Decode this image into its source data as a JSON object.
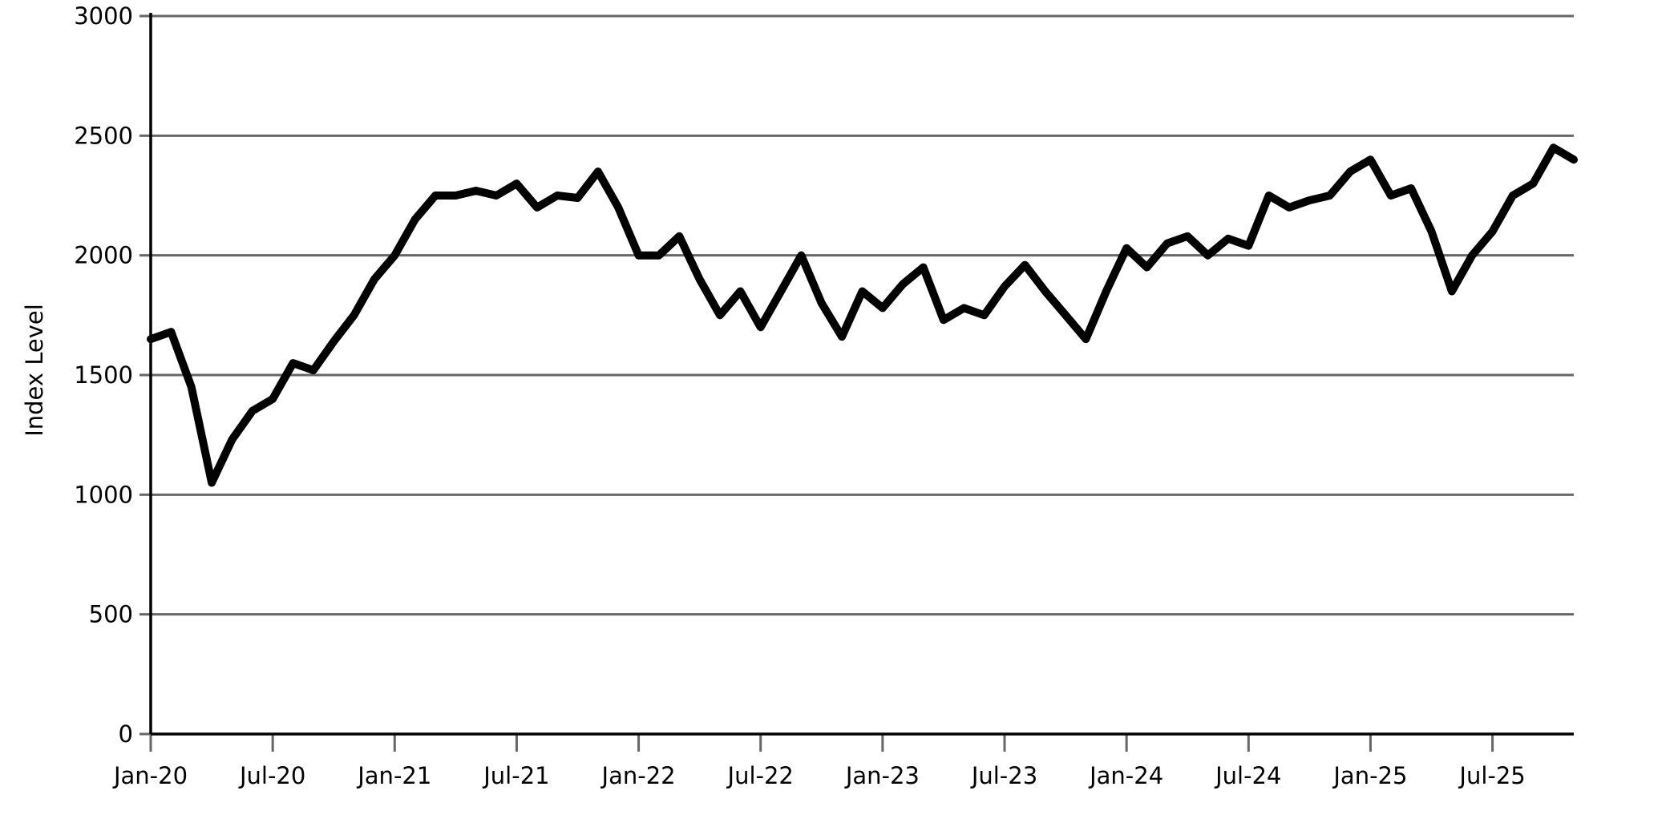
{
  "chart_data": {
    "type": "line",
    "y_label": "Index Level",
    "x": [
      "2020-01",
      "2020-02",
      "2020-03",
      "2020-04",
      "2020-05",
      "2020-06",
      "2020-07",
      "2020-08",
      "2020-09",
      "2020-10",
      "2020-11",
      "2020-12",
      "2021-01",
      "2021-02",
      "2021-03",
      "2021-04",
      "2021-05",
      "2021-06",
      "2021-07",
      "2021-08",
      "2021-09",
      "2021-10",
      "2021-11",
      "2021-12",
      "2022-01",
      "2022-02",
      "2022-03",
      "2022-04",
      "2022-05",
      "2022-06",
      "2022-07",
      "2022-08",
      "2022-09",
      "2022-10",
      "2022-11",
      "2022-12",
      "2023-01",
      "2023-02",
      "2023-03",
      "2023-04",
      "2023-05",
      "2023-06",
      "2023-07",
      "2023-08",
      "2023-09",
      "2023-10",
      "2023-11",
      "2023-12",
      "2024-01",
      "2024-02",
      "2024-03",
      "2024-04",
      "2024-05",
      "2024-06",
      "2024-07",
      "2024-08",
      "2024-09",
      "2024-10",
      "2024-11",
      "2024-12",
      "2025-01",
      "2025-02",
      "2025-03",
      "2025-04",
      "2025-05",
      "2025-06",
      "2025-07",
      "2025-08",
      "2025-09",
      "2025-10",
      "2025-11"
    ],
    "series": [
      {
        "name": "Index Level",
        "color": "#000000",
        "values": [
          1650,
          1680,
          1450,
          1050,
          1230,
          1350,
          1400,
          1550,
          1520,
          1640,
          1750,
          1900,
          2000,
          2150,
          2250,
          2250,
          2270,
          2250,
          2300,
          2200,
          2250,
          2240,
          2350,
          2200,
          2000,
          2000,
          2080,
          1900,
          1750,
          1850,
          1700,
          1850,
          2000,
          1800,
          1660,
          1850,
          1780,
          1880,
          1950,
          1730,
          1780,
          1750,
          1870,
          1960,
          1850,
          1750,
          1650,
          1850,
          2030,
          1950,
          2050,
          2080,
          2000,
          2070,
          2040,
          2250,
          2200,
          2230,
          2250,
          2350,
          2400,
          2250,
          2280,
          2100,
          1850,
          2000,
          2100,
          2250,
          2300,
          2450,
          2400
        ]
      }
    ],
    "xlim": [
      "2020-01",
      "2025-11"
    ],
    "xticks": [
      {
        "value": "2020-01",
        "label": "Jan-20"
      },
      {
        "value": "2020-07",
        "label": "Jul-20"
      },
      {
        "value": "2021-01",
        "label": "Jan-21"
      },
      {
        "value": "2021-07",
        "label": "Jul-21"
      },
      {
        "value": "2022-01",
        "label": "Jan-22"
      },
      {
        "value": "2022-07",
        "label": "Jul-22"
      },
      {
        "value": "2023-01",
        "label": "Jan-23"
      },
      {
        "value": "2023-07",
        "label": "Jul-23"
      },
      {
        "value": "2024-01",
        "label": "Jan-24"
      },
      {
        "value": "2024-07",
        "label": "Jul-24"
      },
      {
        "value": "2025-01",
        "label": "Jan-25"
      },
      {
        "value": "2025-07",
        "label": "Jul-25"
      }
    ],
    "ylim": [
      0,
      3000
    ],
    "yticks": [
      0,
      500,
      1000,
      1500,
      2000,
      2500,
      3000
    ],
    "grid": true
  }
}
